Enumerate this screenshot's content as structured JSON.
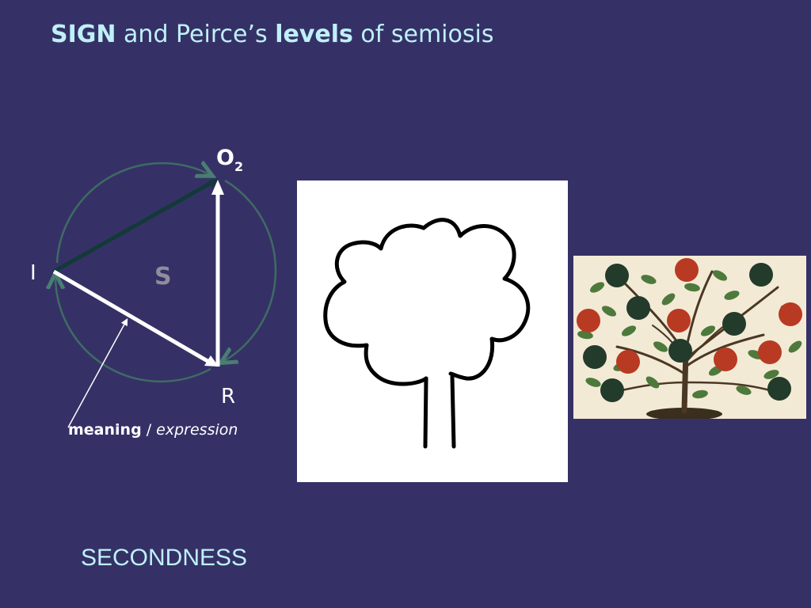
{
  "slide": {
    "title": {
      "sign": "SIGN",
      "and_peirce": "and Peirce’s",
      "levels": "levels",
      "of_semiosis": "of semiosis"
    },
    "footer": "SECONDNESS"
  },
  "diagram": {
    "object_label": "O",
    "object_subscript": "2",
    "interpretant_label": "I",
    "representamen_label": "R",
    "sign_label": "S",
    "meaning_label": "meaning",
    "separator": "/",
    "expression_label": "expression"
  },
  "images": {
    "sketch": "tree-line-drawing",
    "painting": "tree-of-life-painting"
  },
  "colors": {
    "background": "#353166",
    "title": "#bff0f8",
    "circle_arrows": "#3f6b63",
    "dark_edge": "#123a38",
    "white_edges": "#ffffff",
    "sign_label": "#8d8d9f",
    "fruit_red": "#b83a22",
    "fruit_green": "#233b2a",
    "leaf_green": "#4d7a3c"
  }
}
